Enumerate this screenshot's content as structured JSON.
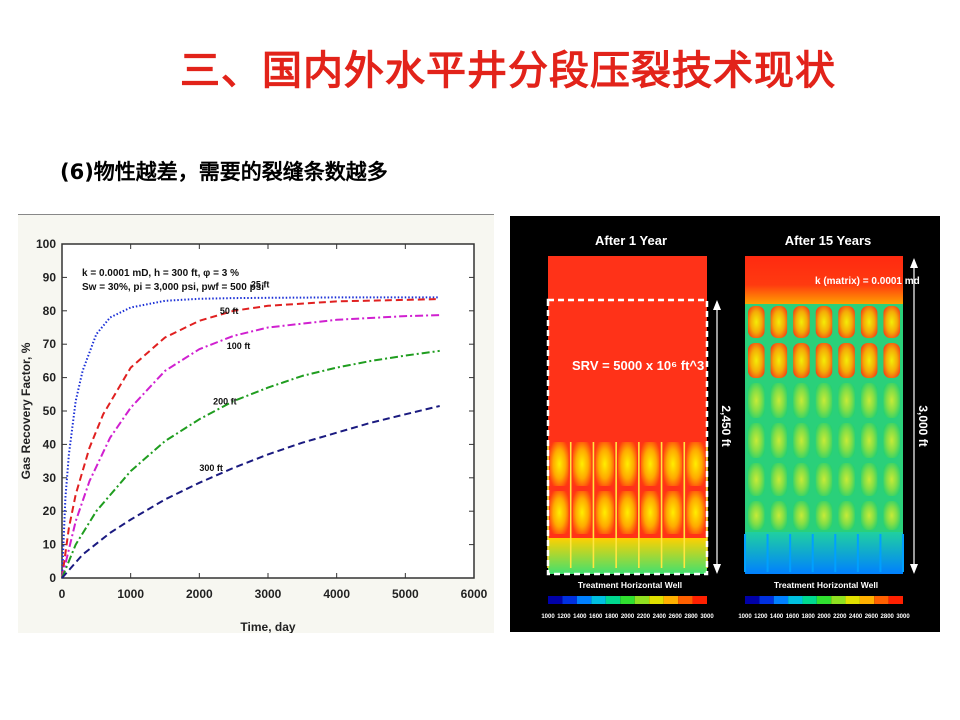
{
  "slide": {
    "title": "三、国内外水平井分段压裂技术现状",
    "subtitle": "(6)物性越差，需要的裂缝条数越多"
  },
  "chart_data": [
    {
      "type": "line",
      "title": "",
      "xlabel": "Time, day",
      "ylabel": "Gas Recovery Factor, %",
      "xlim": [
        0,
        6000
      ],
      "ylim": [
        0,
        100
      ],
      "xticks": [
        "0",
        "1000",
        "2000",
        "3000",
        "4000",
        "5000",
        "6000"
      ],
      "yticks": [
        "0",
        "10",
        "20",
        "30",
        "40",
        "50",
        "60",
        "70",
        "80",
        "90",
        "100"
      ],
      "grid": false,
      "annotation_lines": [
        "k = 0.0001 mD, h = 300 ft, φ = 3 %",
        "Sw = 30%, pi = 3,000 psi, pwf = 500 psi"
      ],
      "series": [
        {
          "name": "25 ft",
          "color": "#1a2fd6",
          "dash": "1.5,2",
          "x": [
            0,
            50,
            100,
            200,
            300,
            500,
            700,
            1000,
            1500,
            2000,
            2500,
            3000,
            4000,
            5500
          ],
          "y": [
            0,
            24,
            37,
            53,
            62,
            73,
            78,
            81,
            83,
            83.6,
            83.8,
            83.9,
            84,
            84
          ]
        },
        {
          "name": "50 ft",
          "color": "#e02020",
          "dash": "7,4",
          "x": [
            0,
            100,
            200,
            400,
            600,
            1000,
            1500,
            2000,
            2500,
            3000,
            4000,
            5500
          ],
          "y": [
            0,
            15,
            25,
            39,
            49,
            63,
            72,
            77,
            80,
            81.5,
            82.8,
            83.5
          ]
        },
        {
          "name": "100 ft",
          "color": "#d020d0",
          "dash": "8,3,2,3",
          "x": [
            0,
            200,
            400,
            700,
            1000,
            1500,
            2000,
            2500,
            3000,
            4000,
            5000,
            5500
          ],
          "y": [
            0,
            17,
            29,
            42,
            51,
            62,
            68.5,
            72.5,
            75,
            77.3,
            78.4,
            78.7
          ]
        },
        {
          "name": "200 ft",
          "color": "#1f9d1f",
          "dash": "8,3,2,3",
          "x": [
            0,
            200,
            500,
            1000,
            1500,
            2000,
            2500,
            3000,
            3500,
            4000,
            4500,
            5000,
            5500
          ],
          "y": [
            0,
            10,
            20,
            32,
            41,
            47.5,
            53,
            57,
            60.5,
            63,
            65,
            66.6,
            68
          ]
        },
        {
          "name": "300 ft",
          "color": "#1a1a80",
          "dash": "7,4",
          "x": [
            0,
            300,
            700,
            1000,
            1500,
            2000,
            2500,
            3000,
            3500,
            4000,
            4500,
            5000,
            5500
          ],
          "y": [
            0,
            7,
            13.5,
            17.5,
            23.5,
            28.5,
            33,
            37,
            40.5,
            43.5,
            46.5,
            49,
            51.5
          ]
        }
      ]
    },
    {
      "type": "heatmap",
      "panels": [
        {
          "title": "After 1 Year",
          "srv_label": "SRV = 5000 x 10⁶ ft^3",
          "height_label": "2,450 ft",
          "well_label": "Treatment Horizontal Well"
        },
        {
          "title": "After 15 Years",
          "matrix_label": "k (matrix) = 0.0001 md",
          "height_label": "3,000 ft",
          "well_label": "Treatment Horizontal Well"
        }
      ],
      "colorbar": {
        "ticks": [
          "1000",
          "1200",
          "1400",
          "1600",
          "1800",
          "2000",
          "2200",
          "2400",
          "2600",
          "2800",
          "3000"
        ],
        "colors": [
          "#0000a8",
          "#0030e0",
          "#0080ff",
          "#00c0e0",
          "#00d890",
          "#30e030",
          "#90e020",
          "#e0e000",
          "#ffb000",
          "#ff6000",
          "#ff2000"
        ]
      }
    }
  ]
}
